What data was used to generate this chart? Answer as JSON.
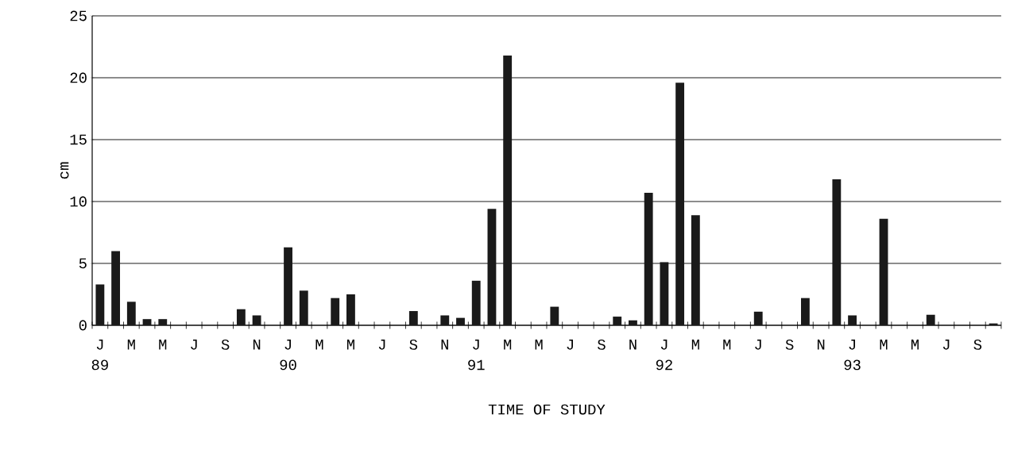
{
  "chart_data": {
    "type": "bar",
    "xlabel": "TIME OF STUDY",
    "ylabel": "cm",
    "categories": [
      "J",
      null,
      "M",
      null,
      "M",
      null,
      "J",
      null,
      "S",
      null,
      "N",
      null,
      "J",
      null,
      "M",
      null,
      "M",
      null,
      "J",
      null,
      "S",
      null,
      "N",
      null,
      "J",
      null,
      "M",
      null,
      "M",
      null,
      "J",
      null,
      "S",
      null,
      "N",
      null,
      "J",
      null,
      "M",
      null,
      "M",
      null,
      "J",
      null,
      "S",
      null,
      "N",
      null,
      "J",
      null,
      "M",
      null,
      "M",
      null,
      "J",
      null,
      "S",
      null
    ],
    "values": [
      3.3,
      6.0,
      1.9,
      0.5,
      0.5,
      0,
      0,
      0,
      0,
      1.3,
      0.8,
      0,
      6.3,
      2.8,
      0,
      2.2,
      2.5,
      0,
      0,
      0,
      1.15,
      0,
      0.8,
      0.6,
      3.6,
      9.4,
      21.8,
      0,
      0,
      1.5,
      0,
      0,
      0,
      0.7,
      0.4,
      10.7,
      5.1,
      19.6,
      8.9,
      0,
      0,
      0,
      1.1,
      0,
      0,
      2.2,
      0,
      11.8,
      0.8,
      0,
      8.6,
      0,
      0,
      0.85,
      0,
      0,
      0,
      0.15
    ],
    "color": "#1a1a1a",
    "ylim": [
      0,
      25
    ],
    "yticks": [
      0,
      5,
      10,
      15,
      20,
      25
    ],
    "grid": "y",
    "annotations": [
      "89",
      "90",
      "91",
      "92",
      "93"
    ]
  }
}
